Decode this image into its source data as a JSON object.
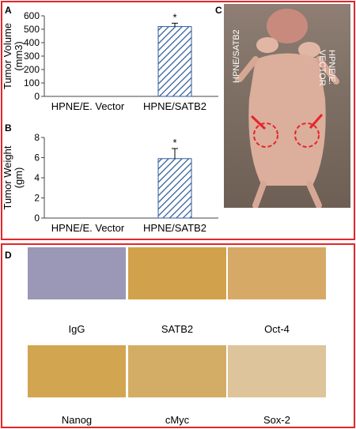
{
  "panels": {
    "A": "A",
    "B": "B",
    "C": "C",
    "D": "D"
  },
  "chart_data": [
    {
      "type": "bar",
      "panel": "A",
      "categories": [
        "HPNE/E. Vector",
        "HPNE/SATB2"
      ],
      "values": [
        0,
        520
      ],
      "error": [
        0,
        25
      ],
      "significance": [
        "",
        "*"
      ],
      "ylabel": "Tumor Volume (mm3)",
      "ylim": [
        0,
        600
      ],
      "yticks": [
        0,
        100,
        200,
        300,
        400,
        500,
        600
      ],
      "bar_fill": "hatched-blue",
      "grid": false
    },
    {
      "type": "bar",
      "panel": "B",
      "categories": [
        "HPNE/E. Vector",
        "HPNE/SATB2"
      ],
      "values": [
        0,
        5.9
      ],
      "error": [
        0,
        1.0
      ],
      "significance": [
        "",
        "*"
      ],
      "ylabel": "Tumor Weight (gm)",
      "ylim": [
        0,
        8
      ],
      "yticks": [
        0,
        2,
        4,
        6,
        8
      ],
      "bar_fill": "hatched-blue",
      "grid": false
    }
  ],
  "photo": {
    "left_label": "HPNE/SATB2",
    "right_label": "HPNE/E. VECTOR",
    "highlight_color": "#e3262a"
  },
  "ihc": {
    "tiles": [
      {
        "label": "IgG",
        "stain": "blue"
      },
      {
        "label": "SATB2",
        "stain": "brown"
      },
      {
        "label": "Oct-4",
        "stain": "brown"
      },
      {
        "label": "Nanog",
        "stain": "brown"
      },
      {
        "label": "cMyc",
        "stain": "brown"
      },
      {
        "label": "Sox-2",
        "stain": "brown"
      }
    ]
  },
  "colors": {
    "frame": "#e3262a",
    "bar": "#2f5b9a"
  }
}
